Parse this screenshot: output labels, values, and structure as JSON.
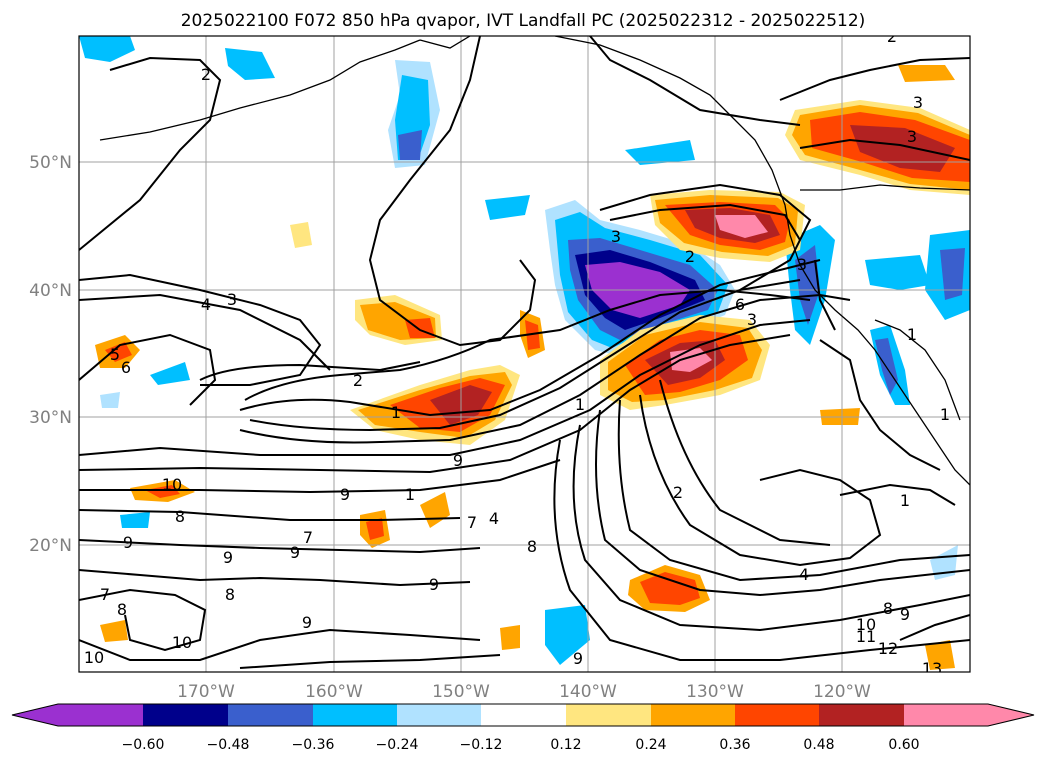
{
  "title": "2025022100 F072 850 hPa qvapor, IVT Landfall PC (2025022312 - 2025022512)",
  "map": {
    "lon_ticks": [
      "170°W",
      "160°W",
      "150°W",
      "140°W",
      "130°W",
      "120°W"
    ],
    "lat_ticks": [
      "50°N",
      "40°N",
      "30°N",
      "20°N"
    ],
    "grid": true
  },
  "colorbar": {
    "ticks": [
      "−0.60",
      "−0.48",
      "−0.36",
      "−0.24",
      "−0.12",
      "0.12",
      "0.24",
      "0.36",
      "0.48",
      "0.60"
    ],
    "colors": [
      "#9b30d0",
      "#00008b",
      "#3a5fcd",
      "#00bfff",
      "#b0e2ff",
      "#ffffff",
      "#ffe680",
      "#ffa500",
      "#ff4500",
      "#b22222",
      "#ff88aa"
    ]
  },
  "contour_labels": [
    "2",
    "3",
    "4",
    "3",
    "5",
    "6",
    "2",
    "1",
    "9",
    "9",
    "1",
    "10",
    "8",
    "9",
    "9",
    "9",
    "7",
    "8",
    "7",
    "4",
    "8",
    "9",
    "8",
    "7",
    "9",
    "10",
    "10",
    "12",
    "11",
    "10",
    "9",
    "8",
    "9",
    "2",
    "4",
    "1",
    "1",
    "3",
    "2",
    "6",
    "3",
    "1",
    "3",
    "2",
    "3",
    "13",
    "1"
  ]
}
